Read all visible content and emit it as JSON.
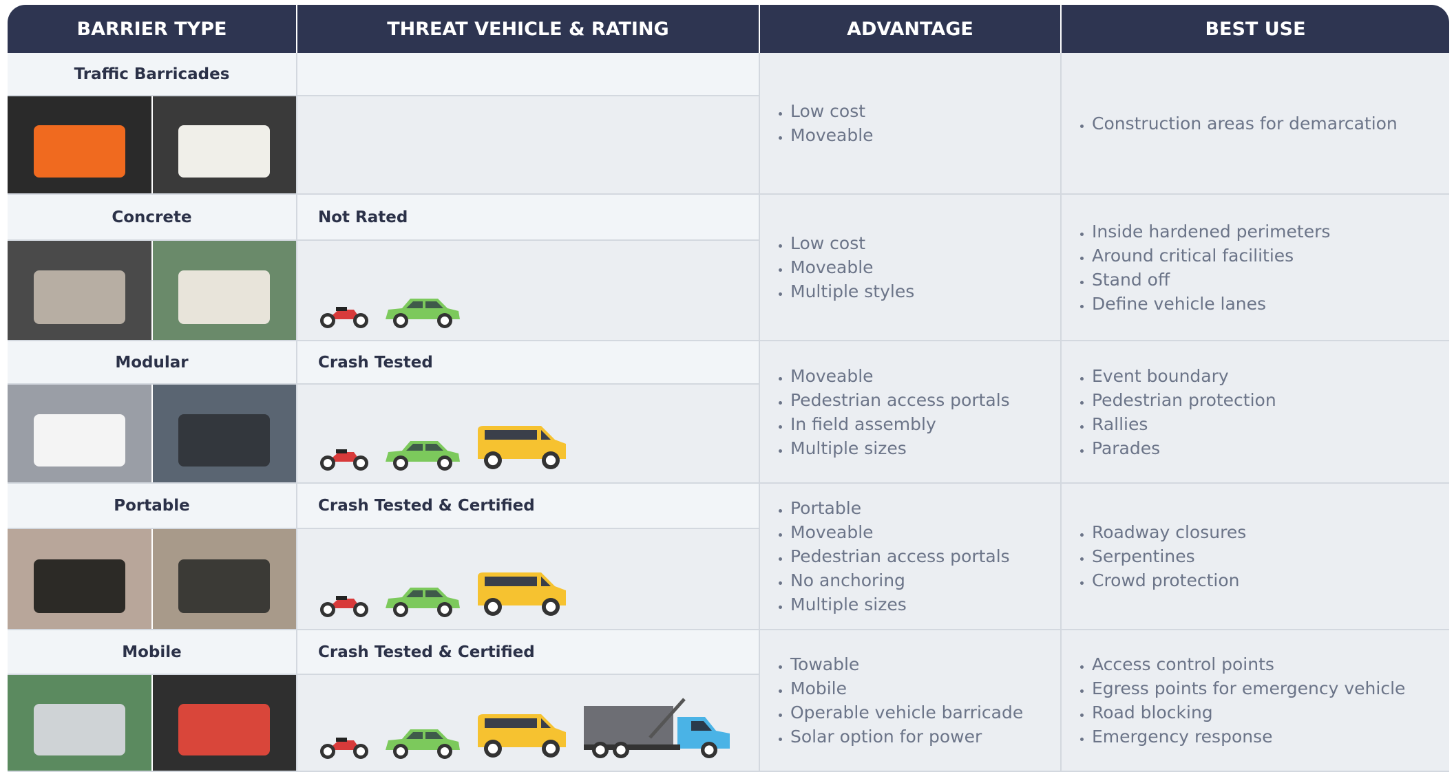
{
  "table": {
    "headers": [
      "BARRIER TYPE",
      "THREAT VEHICLE & RATING",
      "ADVANTAGE",
      "BEST USE"
    ],
    "rows": [
      {
        "barrier_type": "Traffic Barricades",
        "advantages": [
          "Low cost",
          "Moveable"
        ],
        "best_use": [
          "Construction areas for demarcation"
        ]
      },
      {
        "barrier_type": "Concrete",
        "rating": "Not Rated",
        "advantages": [
          "Low cost",
          "Moveable",
          "Multiple styles"
        ],
        "best_use": [
          "Inside hardened perimeters",
          "Around critical facilities",
          "Stand off",
          "Define vehicle lanes"
        ]
      },
      {
        "barrier_type": "Modular",
        "rating": "Crash Tested",
        "advantages": [
          "Moveable",
          "Pedestrian access portals",
          "In field assembly",
          "Multiple sizes"
        ],
        "best_use": [
          "Event boundary",
          "Pedestrian protection",
          "Rallies",
          "Parades"
        ]
      },
      {
        "barrier_type": "Portable",
        "rating": "Crash Tested & Certified",
        "advantages": [
          "Portable",
          "Moveable",
          "Pedestrian access portals",
          "No anchoring",
          "Multiple sizes"
        ],
        "best_use": [
          "Roadway closures",
          "Serpentines",
          "Crowd protection"
        ]
      },
      {
        "barrier_type": "Mobile",
        "rating": "Crash Tested & Certified",
        "advantages": [
          "Towable",
          "Mobile",
          "Operable vehicle barricade",
          "Solar option for power"
        ],
        "best_use": [
          "Access control points",
          "Egress points for emergency vehicle",
          "Road blocking",
          "Emergency response"
        ]
      }
    ]
  }
}
